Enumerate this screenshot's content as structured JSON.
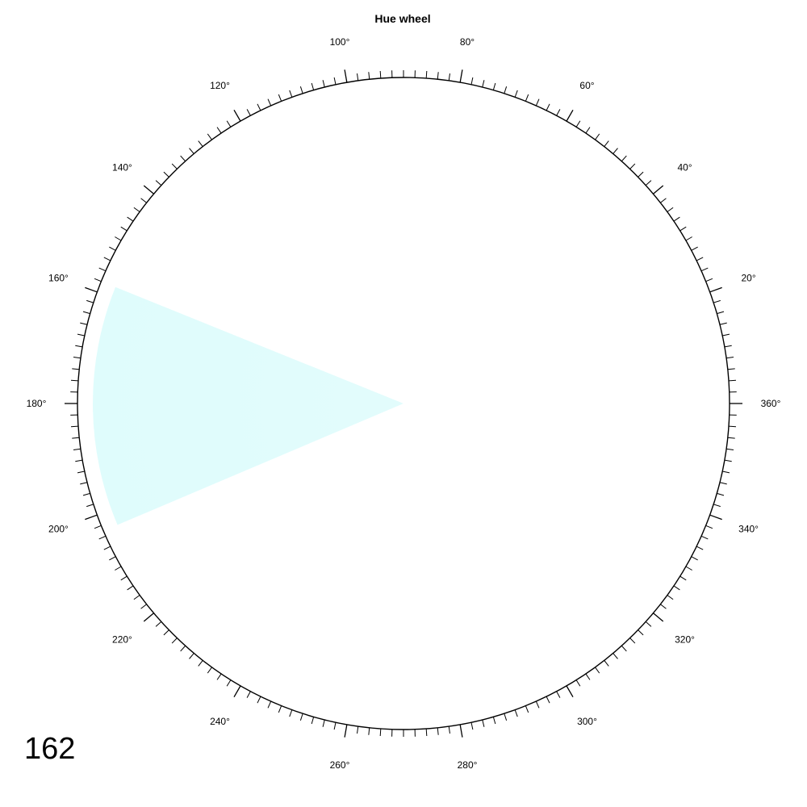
{
  "chart_data": {
    "type": "pie",
    "title": "Hue wheel",
    "angle_unit": "degrees",
    "direction": "counter-clockwise",
    "zero_position": "right",
    "major_tick_step": 20,
    "minor_tick_step": 2,
    "axis_labels": [
      "20°",
      "40°",
      "60°",
      "80°",
      "100°",
      "120°",
      "140°",
      "160°",
      "180°",
      "200°",
      "220°",
      "240°",
      "260°",
      "280°",
      "300°",
      "320°",
      "340°",
      "360°"
    ],
    "sector": {
      "start_angle": 158,
      "end_angle": 203,
      "color": "#dffcfc"
    },
    "grid": false
  },
  "corner_number": "162"
}
